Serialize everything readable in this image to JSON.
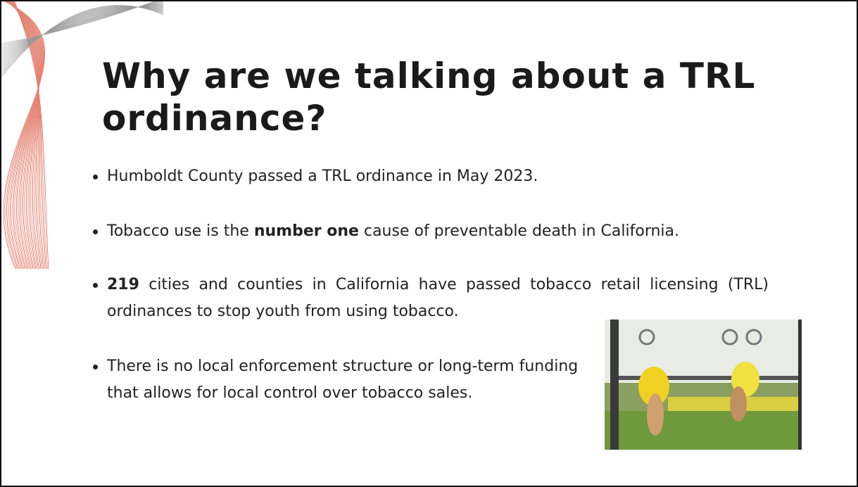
{
  "slide": {
    "title": "Why are we talking about a TRL ordinance?",
    "bullets": [
      {
        "parts": [
          {
            "text": "Humboldt County passed a TRL ordinance in May 2023.",
            "bold": false
          }
        ]
      },
      {
        "parts": [
          {
            "text": "Tobacco use is the ",
            "bold": false
          },
          {
            "text": "number one",
            "bold": true
          },
          {
            "text": " cause of preventable death in California.",
            "bold": false
          }
        ]
      },
      {
        "parts": [
          {
            "text": "219",
            "bold": true
          },
          {
            "text": " cities and counties in California have passed tobacco retail licensing (TRL) ordinances to stop youth from using tobacco.",
            "bold": false
          }
        ]
      },
      {
        "parts": [
          {
            "text": "There is no local enforcement structure or long-term funding that allows for local control over tobacco sales.",
            "bold": false
          }
        ]
      }
    ]
  }
}
